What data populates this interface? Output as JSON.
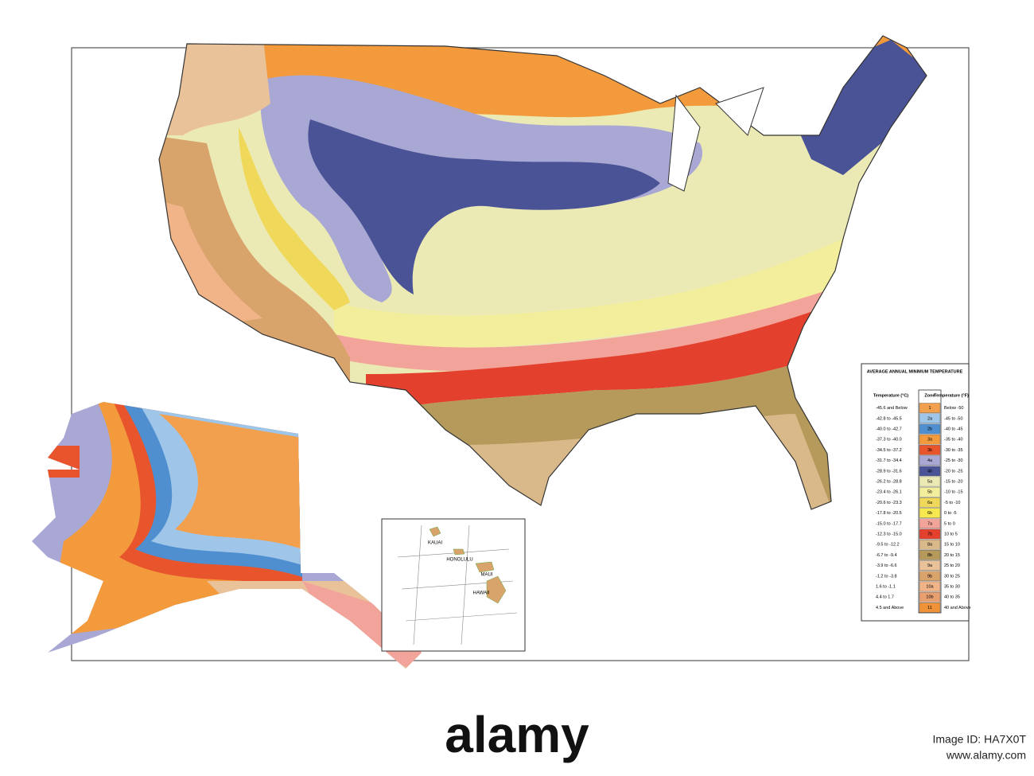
{
  "legend": {
    "title": "AVERAGE ANNUAL MINIMUM TEMPERATURE",
    "headers": [
      "Temperature (°C)",
      "Zone",
      "Temperature (°F)"
    ],
    "rows": [
      {
        "celsius": "-45.6 and Below",
        "zone": "1",
        "fahrenheit": "Below -50",
        "color": "#f2a04e"
      },
      {
        "celsius": "-42.8 to -45.5",
        "zone": "2a",
        "fahrenheit": "-45 to -50",
        "color": "#9fc6e8"
      },
      {
        "celsius": "-40.0 to -42.7",
        "zone": "2b",
        "fahrenheit": "-40 to -45",
        "color": "#4f8fd0"
      },
      {
        "celsius": "-37.3 to -40.0",
        "zone": "3a",
        "fahrenheit": "-35 to -40",
        "color": "#f39a3c"
      },
      {
        "celsius": "-34.5 to -37.2",
        "zone": "3b",
        "fahrenheit": "-30 to -35",
        "color": "#e8542c"
      },
      {
        "celsius": "-31.7 to -34.4",
        "zone": "4a",
        "fahrenheit": "-25 to -30",
        "color": "#a9a8d4"
      },
      {
        "celsius": "-28.9 to -31.6",
        "zone": "4b",
        "fahrenheit": "-20 to -25",
        "color": "#4a5396"
      },
      {
        "celsius": "-26.2 to -28.8",
        "zone": "5a",
        "fahrenheit": "-15 to -20",
        "color": "#eceab4"
      },
      {
        "celsius": "-23.4 to -26.1",
        "zone": "5b",
        "fahrenheit": "-10 to -15",
        "color": "#f3ee9c"
      },
      {
        "celsius": "-20.6 to -23.3",
        "zone": "6a",
        "fahrenheit": "-5 to -10",
        "color": "#f0d95a"
      },
      {
        "celsius": "-17.8 to -20.5",
        "zone": "6b",
        "fahrenheit": "0 to -5",
        "color": "#f6e84e"
      },
      {
        "celsius": "-15.0 to -17.7",
        "zone": "7a",
        "fahrenheit": "5 to 0",
        "color": "#f2a49a"
      },
      {
        "celsius": "-12.3 to -15.0",
        "zone": "7b",
        "fahrenheit": "10 to 5",
        "color": "#e4402e"
      },
      {
        "celsius": "-9.5 to -12.2",
        "zone": "8a",
        "fahrenheit": "15 to 10",
        "color": "#d9b98a"
      },
      {
        "celsius": "-6.7 to -9.4",
        "zone": "8b",
        "fahrenheit": "20 to 15",
        "color": "#b59a5c"
      },
      {
        "celsius": "-3.9 to -6.6",
        "zone": "9a",
        "fahrenheit": "25 to 20",
        "color": "#e9c29a"
      },
      {
        "celsius": "-1.2 to -3.8",
        "zone": "9b",
        "fahrenheit": "30 to 25",
        "color": "#d9a36c"
      },
      {
        "celsius": "1.6 to -1.1",
        "zone": "10a",
        "fahrenheit": "35 to 30",
        "color": "#f0b488"
      },
      {
        "celsius": "4.4 to 1.7",
        "zone": "10b",
        "fahrenheit": "40 to 35",
        "color": "#e8a070"
      },
      {
        "celsius": "4.5 and Above",
        "zone": "11",
        "fahrenheit": "40 and Above",
        "color": "#f09238"
      }
    ]
  },
  "hawaii": {
    "labels": [
      "KAUAI",
      "HONOLULU",
      "MAUI",
      "HAWAII"
    ]
  },
  "watermark": {
    "brand": "alamy",
    "image_id": "Image ID: HA7X0T",
    "url": "www.alamy.com"
  }
}
